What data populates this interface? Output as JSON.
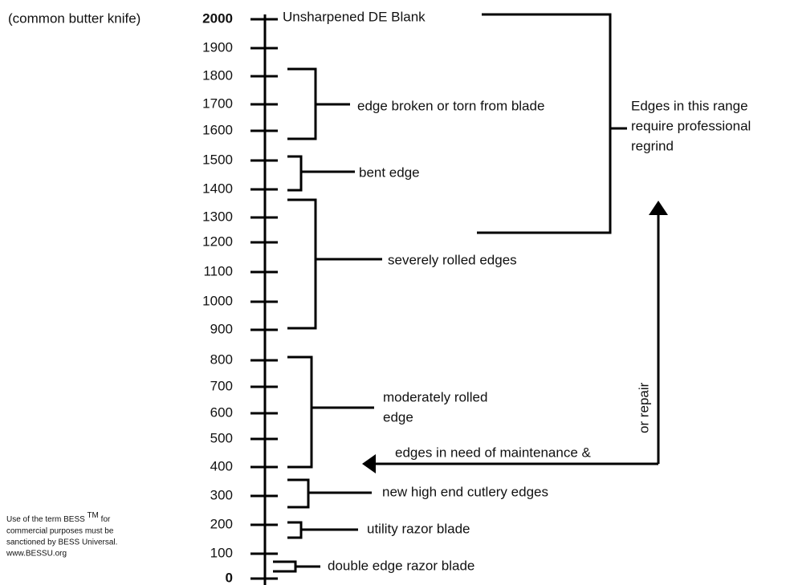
{
  "scale_note": "(common butter knife)",
  "ticks": [
    "2000",
    "1900",
    "1800",
    "1700",
    "1600",
    "1500",
    "1400",
    "1300",
    "1200",
    "1100",
    "1000",
    "900",
    "800",
    "700",
    "600",
    "500",
    "400",
    "300",
    "200",
    "100",
    "0"
  ],
  "top_label": "Unsharpened DE Blank",
  "brackets": [
    {
      "lines": [
        "edge broken or torn from blade"
      ]
    },
    {
      "lines": [
        "bent edge"
      ]
    },
    {
      "lines": [
        "severely rolled edges"
      ]
    },
    {
      "lines": [
        "moderately rolled",
        "edge"
      ]
    },
    {
      "lines": [
        "new high end cutlery edges"
      ]
    },
    {
      "lines": [
        "utility razor blade"
      ]
    },
    {
      "lines": [
        "double edge razor blade"
      ]
    }
  ],
  "range_note": [
    "Edges in this range",
    "require professional",
    "regrind"
  ],
  "arrow_note": "edges in need of maintenance &",
  "arrow_note_vertical": "or repair",
  "footer": {
    "first": "Use of the term BESS",
    "superscript": "TM",
    "first_end": "for",
    "lines": [
      "commercial purposes must be",
      "sanctioned by BESS Universal.",
      "www.BESSU.org"
    ]
  }
}
